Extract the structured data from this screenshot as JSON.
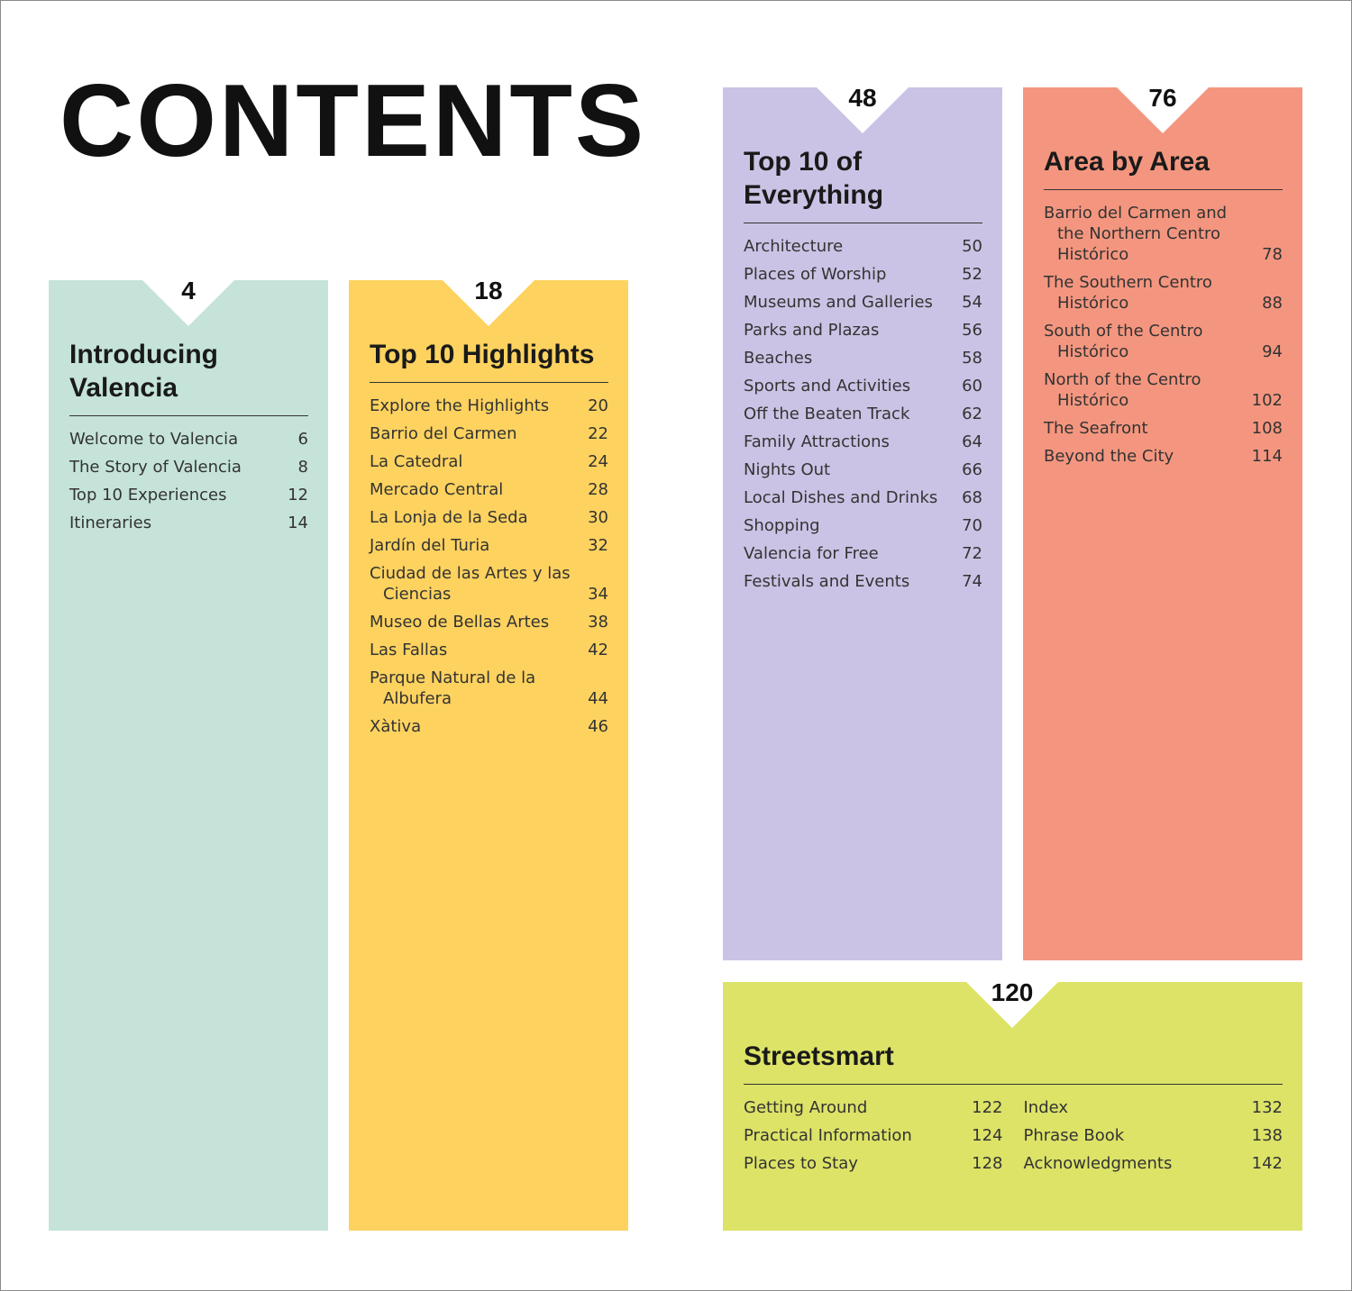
{
  "title": "CONTENTS",
  "sections": [
    {
      "id": "introducing",
      "page": "4",
      "title": "Introducing Valencia",
      "color": "#c5e3d9",
      "items": [
        {
          "label": "Welcome to Valencia",
          "page": "6"
        },
        {
          "label": "The Story of Valencia",
          "page": "8"
        },
        {
          "label": "Top 10 Experiences",
          "page": "12"
        },
        {
          "label": "Itineraries",
          "page": "14"
        }
      ]
    },
    {
      "id": "highlights",
      "page": "18",
      "title": "Top 10 Highlights",
      "color": "#fdd25f",
      "items": [
        {
          "label": "Explore the Highlights",
          "page": "20"
        },
        {
          "label": "Barrio del Carmen",
          "page": "22"
        },
        {
          "label": "La Catedral",
          "page": "24"
        },
        {
          "label": "Mercado Central",
          "page": "28"
        },
        {
          "label": "La Lonja de la Seda",
          "page": "30"
        },
        {
          "label": "Jardín del Turia",
          "page": "32"
        },
        {
          "label": "Ciudad de las Artes y las Ciencias",
          "page": "34"
        },
        {
          "label": "Museo de Bellas Artes",
          "page": "38"
        },
        {
          "label": "Las Fallas",
          "page": "42"
        },
        {
          "label": "Parque Natural de la Albufera",
          "page": "44"
        },
        {
          "label": "Xàtiva",
          "page": "46"
        }
      ]
    },
    {
      "id": "everything",
      "page": "48",
      "title": "Top 10 of Everything",
      "color": "#cbc3e5",
      "items": [
        {
          "label": "Architecture",
          "page": "50"
        },
        {
          "label": "Places of Worship",
          "page": "52"
        },
        {
          "label": "Museums and Galleries",
          "page": "54"
        },
        {
          "label": "Parks and Plazas",
          "page": "56"
        },
        {
          "label": "Beaches",
          "page": "58"
        },
        {
          "label": "Sports and Activities",
          "page": "60"
        },
        {
          "label": "Off the Beaten Track",
          "page": "62"
        },
        {
          "label": "Family Attractions",
          "page": "64"
        },
        {
          "label": "Nights Out",
          "page": "66"
        },
        {
          "label": "Local Dishes and Drinks",
          "page": "68"
        },
        {
          "label": "Shopping",
          "page": "70"
        },
        {
          "label": "Valencia for Free",
          "page": "72"
        },
        {
          "label": "Festivals and Events",
          "page": "74"
        }
      ]
    },
    {
      "id": "area",
      "page": "76",
      "title": "Area by Area",
      "color": "#f4967f",
      "items": [
        {
          "label": "Barrio del Carmen and the Northern Centro Histórico",
          "page": "78"
        },
        {
          "label": "The Southern Centro Histórico",
          "page": "88"
        },
        {
          "label": "South of the Centro Histórico",
          "page": "94"
        },
        {
          "label": "North of the Centro Histórico",
          "page": "102"
        },
        {
          "label": "The Seafront",
          "page": "108"
        },
        {
          "label": "Beyond the City",
          "page": "114"
        }
      ]
    },
    {
      "id": "streetsmart",
      "page": "120",
      "title": "Streetsmart",
      "color": "#dce367",
      "items": [
        {
          "label": "Getting Around",
          "page": "122"
        },
        {
          "label": "Practical Information",
          "page": "124"
        },
        {
          "label": "Places to Stay",
          "page": "128"
        },
        {
          "label": "Index",
          "page": "132"
        },
        {
          "label": "Phrase Book",
          "page": "138"
        },
        {
          "label": "Acknowledgments",
          "page": "142"
        }
      ]
    }
  ]
}
